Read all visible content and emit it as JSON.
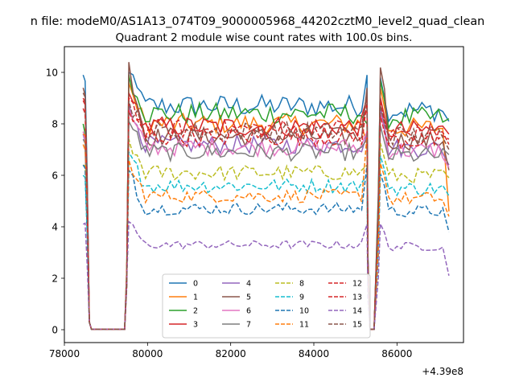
{
  "chart_data": {
    "type": "line",
    "suptitle": "n file: modeM0/AS1A13_074T09_9000005968_44202cztM0_level2_quad_clean",
    "title": "Quadrant 2 module wise count rates with 100.0s bins.",
    "xlabel": "",
    "ylabel": "",
    "x_offset_label": "+4.39e8",
    "xlim": [
      78000,
      87600
    ],
    "ylim": [
      -0.5,
      11.0
    ],
    "x_ticks": [
      78000,
      80000,
      82000,
      84000,
      86000
    ],
    "y_ticks": [
      0,
      2,
      4,
      6,
      8,
      10
    ],
    "grid": false,
    "legend": {
      "placement": "lower-center",
      "columns": 4
    },
    "segments": [
      {
        "x_start": 78450,
        "x_end": 79550,
        "step": 50,
        "drop_index": 3,
        "dip_end_index": 20
      },
      {
        "x_start": 79550,
        "x_end": 85300,
        "step": 100
      },
      {
        "x_start": 85300,
        "x_end": 85550,
        "step": 50,
        "dip_start_index": 1,
        "dip_end_index": 4
      },
      {
        "x_start": 85550,
        "x_end": 87250,
        "step": 100
      }
    ],
    "series": [
      {
        "name": "0",
        "color": "#1f77b4",
        "dash": "solid",
        "level": 8.7,
        "peak": 10.0,
        "edge": 9.9,
        "end": 8.1
      },
      {
        "name": "1",
        "color": "#ff7f0e",
        "dash": "solid",
        "level": 8.0,
        "peak": 9.6,
        "edge": 7.2,
        "end": 4.6
      },
      {
        "name": "2",
        "color": "#2ca02c",
        "dash": "solid",
        "level": 8.4,
        "peak": 9.9,
        "edge": 8.0,
        "end": 8.2
      },
      {
        "name": "3",
        "color": "#d62728",
        "dash": "solid",
        "level": 7.9,
        "peak": 9.2,
        "edge": 9.0,
        "end": 7.6
      },
      {
        "name": "4",
        "color": "#9467bd",
        "dash": "solid",
        "level": 7.2,
        "peak": 8.8,
        "edge": 7.6,
        "end": 6.4
      },
      {
        "name": "5",
        "color": "#8c564b",
        "dash": "solid",
        "level": 7.5,
        "peak": 10.4,
        "edge": 9.4,
        "end": 6.2
      },
      {
        "name": "6",
        "color": "#e377c2",
        "dash": "solid",
        "level": 7.1,
        "peak": 8.6,
        "edge": 7.7,
        "end": 6.3
      },
      {
        "name": "7",
        "color": "#7f7f7f",
        "dash": "solid",
        "level": 6.9,
        "peak": 8.1,
        "edge": 7.4,
        "end": 6.8
      },
      {
        "name": "8",
        "color": "#bcbd22",
        "dash": "dashed",
        "level": 6.1,
        "peak": 7.4,
        "edge": 6.4,
        "end": 5.9
      },
      {
        "name": "9",
        "color": "#17becf",
        "dash": "dashed",
        "level": 5.6,
        "peak": 6.9,
        "edge": 6.0,
        "end": 5.2
      },
      {
        "name": "10",
        "color": "#1f77b4",
        "dash": "dashed",
        "level": 4.7,
        "peak": 6.2,
        "edge": 6.4,
        "end": 3.8
      },
      {
        "name": "11",
        "color": "#ff7f0e",
        "dash": "dashed",
        "level": 5.2,
        "peak": 6.6,
        "edge": 7.6,
        "end": 4.4
      },
      {
        "name": "12",
        "color": "#d62728",
        "dash": "dashed",
        "level": 7.8,
        "peak": 9.0,
        "edge": 8.6,
        "end": 7.4
      },
      {
        "name": "13",
        "color": "#d62728",
        "dash": "dashed",
        "level": 7.5,
        "peak": 8.5,
        "edge": 8.9,
        "end": 7.2
      },
      {
        "name": "14",
        "color": "#9467bd",
        "dash": "dashed",
        "level": 3.3,
        "peak": 4.2,
        "edge": 4.1,
        "end": 2.1
      },
      {
        "name": "15",
        "color": "#8c564b",
        "dash": "dashed",
        "level": 7.7,
        "peak": 8.9,
        "edge": 9.2,
        "end": 7.0
      }
    ]
  }
}
